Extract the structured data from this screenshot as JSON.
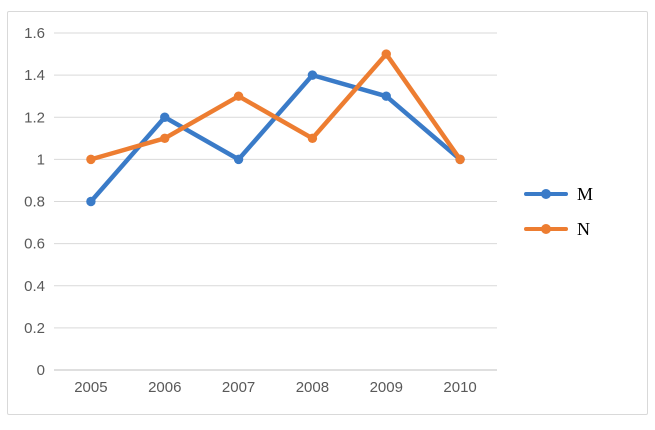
{
  "chart_data": {
    "type": "line",
    "title": "",
    "xlabel": "",
    "ylabel": "",
    "categories": [
      "2005",
      "2006",
      "2007",
      "2008",
      "2009",
      "2010"
    ],
    "series": [
      {
        "name": "M",
        "color": "#3a7bc8",
        "values": [
          0.8,
          1.2,
          1.0,
          1.4,
          1.3,
          1.0
        ]
      },
      {
        "name": "N",
        "color": "#ed7d31",
        "values": [
          1.0,
          1.1,
          1.3,
          1.1,
          1.5,
          1.0
        ]
      }
    ],
    "ylim": [
      0,
      1.6
    ],
    "y_ticks": [
      "0",
      "0.2",
      "0.4",
      "0.6",
      "0.8",
      "1",
      "1.2",
      "1.4",
      "1.6"
    ],
    "grid": true,
    "legend_position": "right"
  },
  "styles": {
    "background": "#ffffff",
    "frame_border": "#d9d9d9",
    "gridline": "#d9d9d9",
    "axis_line": "#bfbfbf",
    "tick_text": "#595959",
    "legend_text": "#000000"
  }
}
